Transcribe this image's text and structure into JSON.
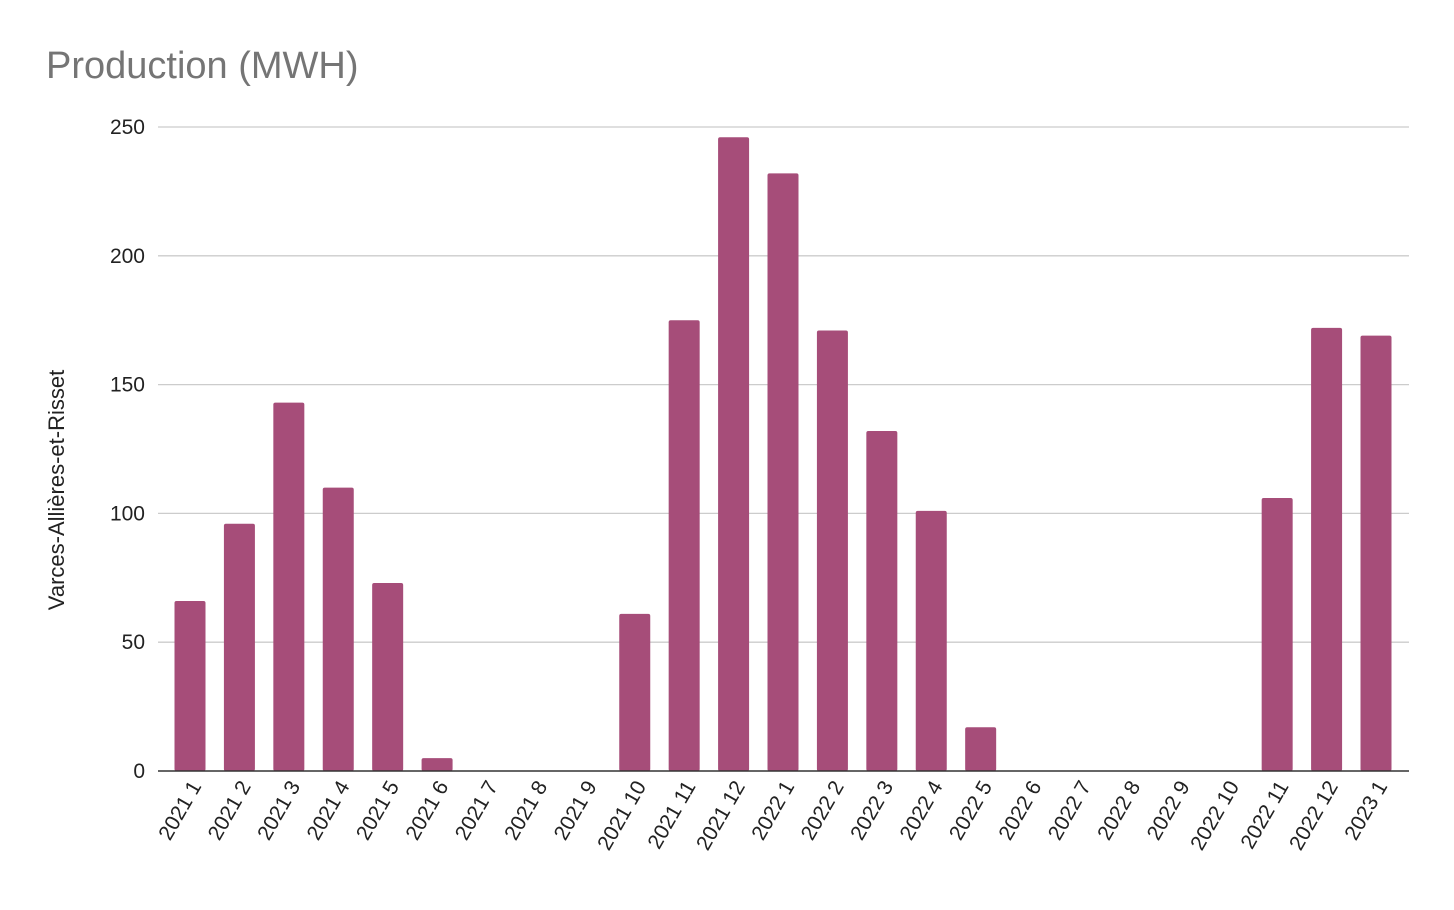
{
  "chart_data": {
    "type": "bar",
    "title": "Production (MWH)",
    "xlabel": "",
    "ylabel": "Varces-Allières-et-Risset",
    "ylim": [
      0,
      250
    ],
    "yticks": [
      0,
      50,
      100,
      150,
      200,
      250
    ],
    "grid": true,
    "legend": "none",
    "bar_color": "#a64d79",
    "categories": [
      "2021 1",
      "2021 2",
      "2021 3",
      "2021 4",
      "2021 5",
      "2021 6",
      "2021 7",
      "2021 8",
      "2021 9",
      "2021 10",
      "2021 11",
      "2021 12",
      "2022 1",
      "2022 2",
      "2022 3",
      "2022 4",
      "2022 5",
      "2022 6",
      "2022 7",
      "2022 8",
      "2022 9",
      "2022 10",
      "2022 11",
      "2022 12",
      "2023 1"
    ],
    "values": [
      66,
      96,
      143,
      110,
      73,
      5,
      0,
      0,
      0,
      61,
      175,
      246,
      232,
      171,
      132,
      101,
      17,
      0,
      0,
      0,
      0,
      0,
      106,
      172,
      169
    ]
  }
}
